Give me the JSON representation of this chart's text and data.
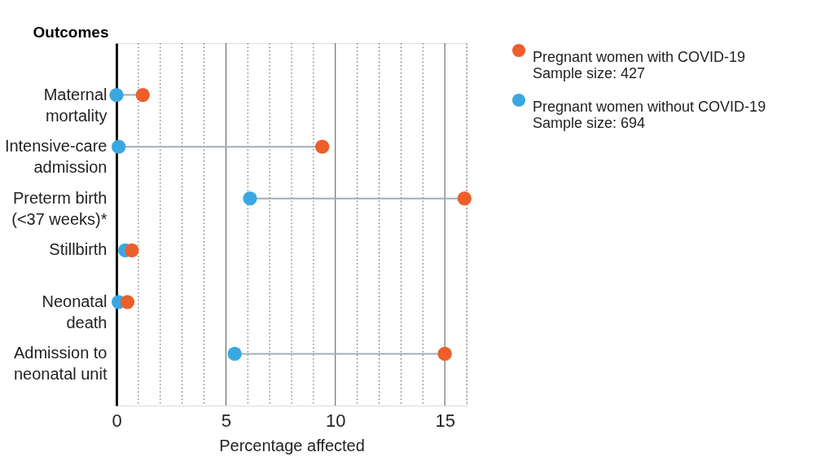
{
  "chart_data": {
    "type": "scatter",
    "orientation": "horizontal",
    "ylabel": "Outcomes",
    "xlabel": "Percentage affected",
    "categories": [
      "Maternal mortality",
      "Intensive-care admission",
      "Preterm birth (<37 weeks)*",
      "Stillbirth",
      "Neonatal death",
      "Admission to neonatal unit"
    ],
    "series": [
      {
        "name": "Pregnant women with COVID-19\nSample size: 427",
        "color": "#ec5f2a",
        "values": [
          1.2,
          9.4,
          15.9,
          0.7,
          0.5,
          15.0
        ]
      },
      {
        "name": "Pregnant women without COVID-19\nSample size: 694",
        "color": "#3aa8e0",
        "values": [
          0,
          0.1,
          6.1,
          0.4,
          0.1,
          5.4
        ]
      }
    ],
    "xlim": [
      0,
      16
    ],
    "xticks": [
      0,
      {
        "value": 1,
        "label": null
      },
      {
        "value": 2,
        "label": null
      },
      {
        "value": 3,
        "label": null
      },
      {
        "value": 4,
        "label": null
      },
      5,
      {
        "value": 6,
        "label": null
      },
      {
        "value": 7,
        "label": null
      },
      {
        "value": 8,
        "label": null
      },
      {
        "value": 9,
        "label": null
      },
      10,
      {
        "value": 11,
        "label": null
      },
      {
        "value": 12,
        "label": null
      },
      {
        "value": 13,
        "label": null
      },
      {
        "value": 14,
        "label": null
      },
      15,
      {
        "value": 16,
        "label": null
      }
    ],
    "grid": "x",
    "legend": "top right",
    "marker": "circle"
  }
}
